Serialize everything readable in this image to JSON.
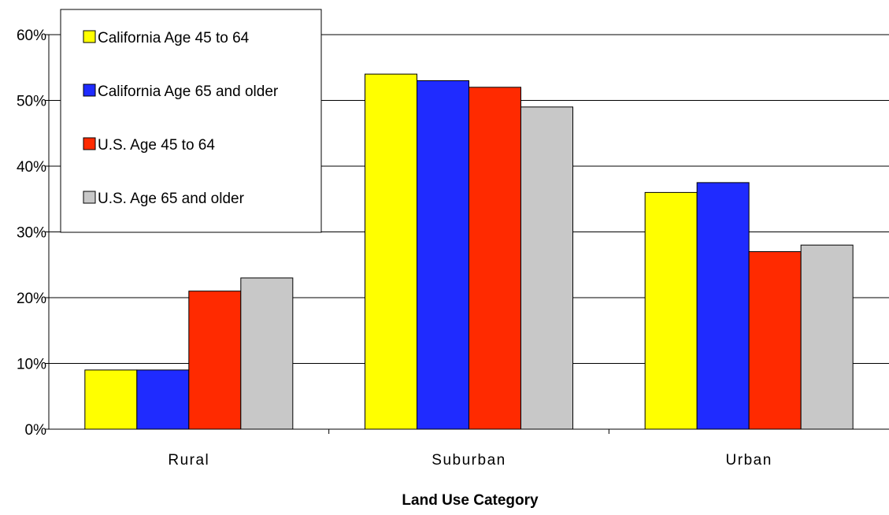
{
  "chart_data": {
    "type": "bar",
    "categories": [
      "Rural",
      "Suburban",
      "Urban"
    ],
    "series": [
      {
        "name": "California Age 45 to 64",
        "color": "#ffff00",
        "values": [
          9,
          54,
          36
        ]
      },
      {
        "name": "California Age 65 and older",
        "color": "#1f2bff",
        "values": [
          9,
          53,
          37.5
        ]
      },
      {
        "name": "U.S. Age 45 to 64",
        "color": "#ff2a00",
        "values": [
          21,
          52,
          27
        ]
      },
      {
        "name": "U.S. Age 65 and older",
        "color": "#c8c8c8",
        "values": [
          23,
          49,
          28
        ]
      }
    ],
    "title": "",
    "xlabel": "Land Use Category",
    "ylabel": "",
    "ylim": [
      0,
      60
    ],
    "yticks": [
      "0%",
      "10%",
      "20%",
      "30%",
      "40%",
      "50%",
      "60%"
    ],
    "grid": true,
    "legend_position": "top-left"
  }
}
